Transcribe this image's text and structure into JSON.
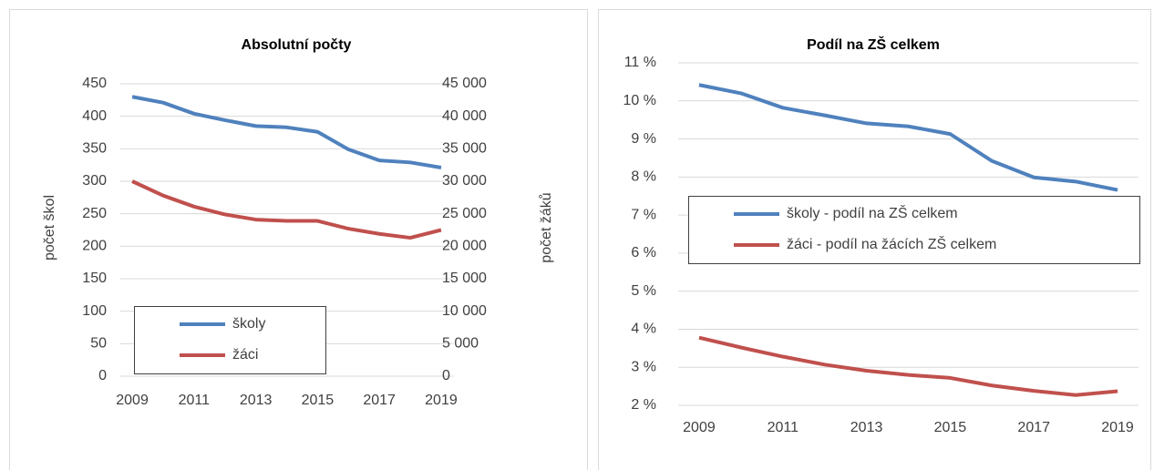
{
  "chart_data": [
    {
      "type": "line",
      "title": "Absolutní počty",
      "x": [
        2009,
        2010,
        2011,
        2012,
        2013,
        2014,
        2015,
        2016,
        2017,
        2018,
        2019
      ],
      "xlim": [
        2008.6,
        2019.4
      ],
      "xticks": [
        2009,
        2011,
        2013,
        2015,
        2017,
        2019
      ],
      "ylabel": "počet škol",
      "y2label": "počet žáků",
      "ylim": [
        0,
        450
      ],
      "yticks": [
        0,
        50,
        100,
        150,
        200,
        250,
        300,
        350,
        400,
        450
      ],
      "y2lim": [
        0,
        45000
      ],
      "y2ticks": [
        0,
        {
          "value": 5000,
          "label": "5 000"
        },
        {
          "value": 10000,
          "label": "10 000"
        },
        {
          "value": 15000,
          "label": "15 000"
        },
        {
          "value": 20000,
          "label": "20 000"
        },
        {
          "value": 25000,
          "label": "25 000"
        },
        {
          "value": 30000,
          "label": "30 000"
        },
        {
          "value": 35000,
          "label": "35 000"
        },
        {
          "value": 40000,
          "label": "40 000"
        },
        {
          "value": 45000,
          "label": "45 000"
        }
      ],
      "grid": true,
      "legend": "lower left",
      "series": [
        {
          "name": "školy",
          "color": "#4f81bd",
          "values": [
            430,
            421,
            404,
            394,
            385,
            383,
            376,
            349,
            332,
            329,
            321
          ]
        },
        {
          "name": "žáci",
          "color": "#c0504d",
          "axis": "y2",
          "values": [
            30000,
            27800,
            26100,
            24900,
            24100,
            23900,
            23900,
            22700,
            21900,
            21300,
            22500
          ]
        }
      ]
    },
    {
      "type": "line",
      "title": "Podíl na ZŠ celkem",
      "x": [
        2009,
        2010,
        2011,
        2012,
        2013,
        2014,
        2015,
        2016,
        2017,
        2018,
        2019
      ],
      "xlim": [
        2008.5,
        2019.5
      ],
      "xticks": [
        2009,
        2011,
        2013,
        2015,
        2017,
        2019
      ],
      "ylim": [
        2,
        11
      ],
      "yticks": [
        {
          "value": 2,
          "label": "2 %"
        },
        {
          "value": 3,
          "label": "3 %"
        },
        {
          "value": 4,
          "label": "4 %"
        },
        {
          "value": 5,
          "label": "5 %"
        },
        {
          "value": 6,
          "label": "6 %"
        },
        {
          "value": 7,
          "label": "7 %"
        },
        {
          "value": 8,
          "label": "8 %"
        },
        {
          "value": 9,
          "label": "9 %"
        },
        {
          "value": 10,
          "label": "10 %"
        },
        {
          "value": 11,
          "label": "11 %"
        }
      ],
      "grid": true,
      "legend": "center left",
      "series": [
        {
          "name": "školy - podíl na ZŠ celkem",
          "color": "#4f81bd",
          "values": [
            10.42,
            10.2,
            9.82,
            9.62,
            9.41,
            9.33,
            9.13,
            8.42,
            7.99,
            7.88,
            7.66
          ]
        },
        {
          "name": "žáci - podíl na žácích ZŠ celkem",
          "color": "#c0504d",
          "values": [
            3.78,
            3.52,
            3.28,
            3.07,
            2.91,
            2.8,
            2.72,
            2.52,
            2.38,
            2.27,
            2.37
          ]
        }
      ]
    }
  ]
}
